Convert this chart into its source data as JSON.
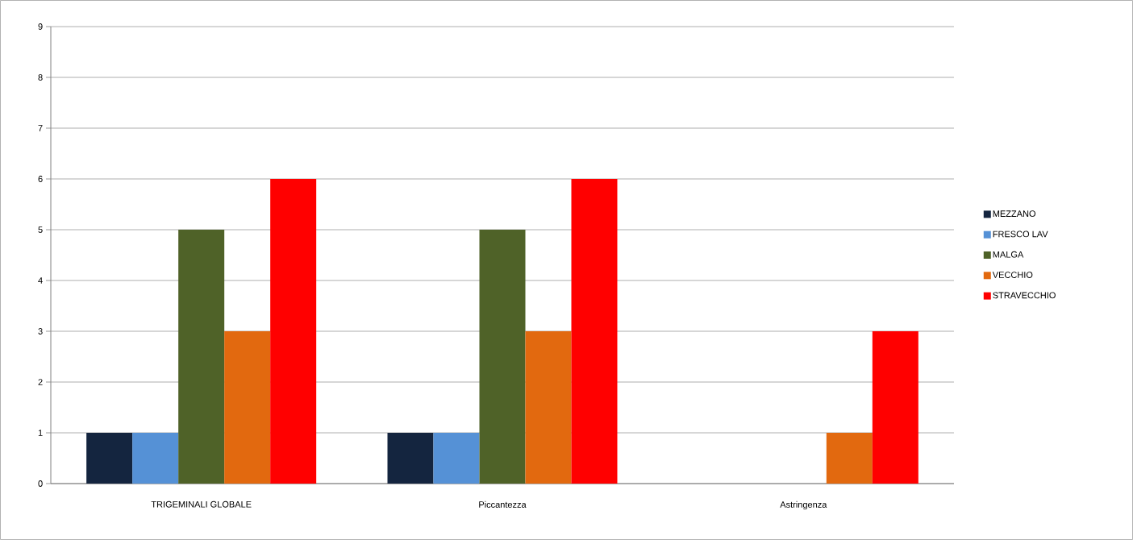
{
  "chart_data": {
    "type": "bar",
    "categories": [
      "TRIGEMINALI GLOBALE",
      "Piccantezza",
      "Astringenza"
    ],
    "series": [
      {
        "name": "MEZZANO",
        "color": "#14253f",
        "values": [
          1,
          1,
          0
        ]
      },
      {
        "name": "FRESCO LAV",
        "color": "#5591d6",
        "values": [
          1,
          1,
          0
        ]
      },
      {
        "name": "MALGA",
        "color": "#4f6228",
        "values": [
          5,
          5,
          0
        ]
      },
      {
        "name": "VECCHIO",
        "color": "#e2690f",
        "values": [
          3,
          3,
          1
        ]
      },
      {
        "name": "STRAVECCHIO",
        "color": "#ff0000",
        "values": [
          6,
          6,
          3
        ]
      }
    ],
    "ylim": [
      0,
      9
    ],
    "yticks": [
      0,
      1,
      2,
      3,
      4,
      5,
      6,
      7,
      8,
      9
    ],
    "grid": "y",
    "legend": "right"
  }
}
